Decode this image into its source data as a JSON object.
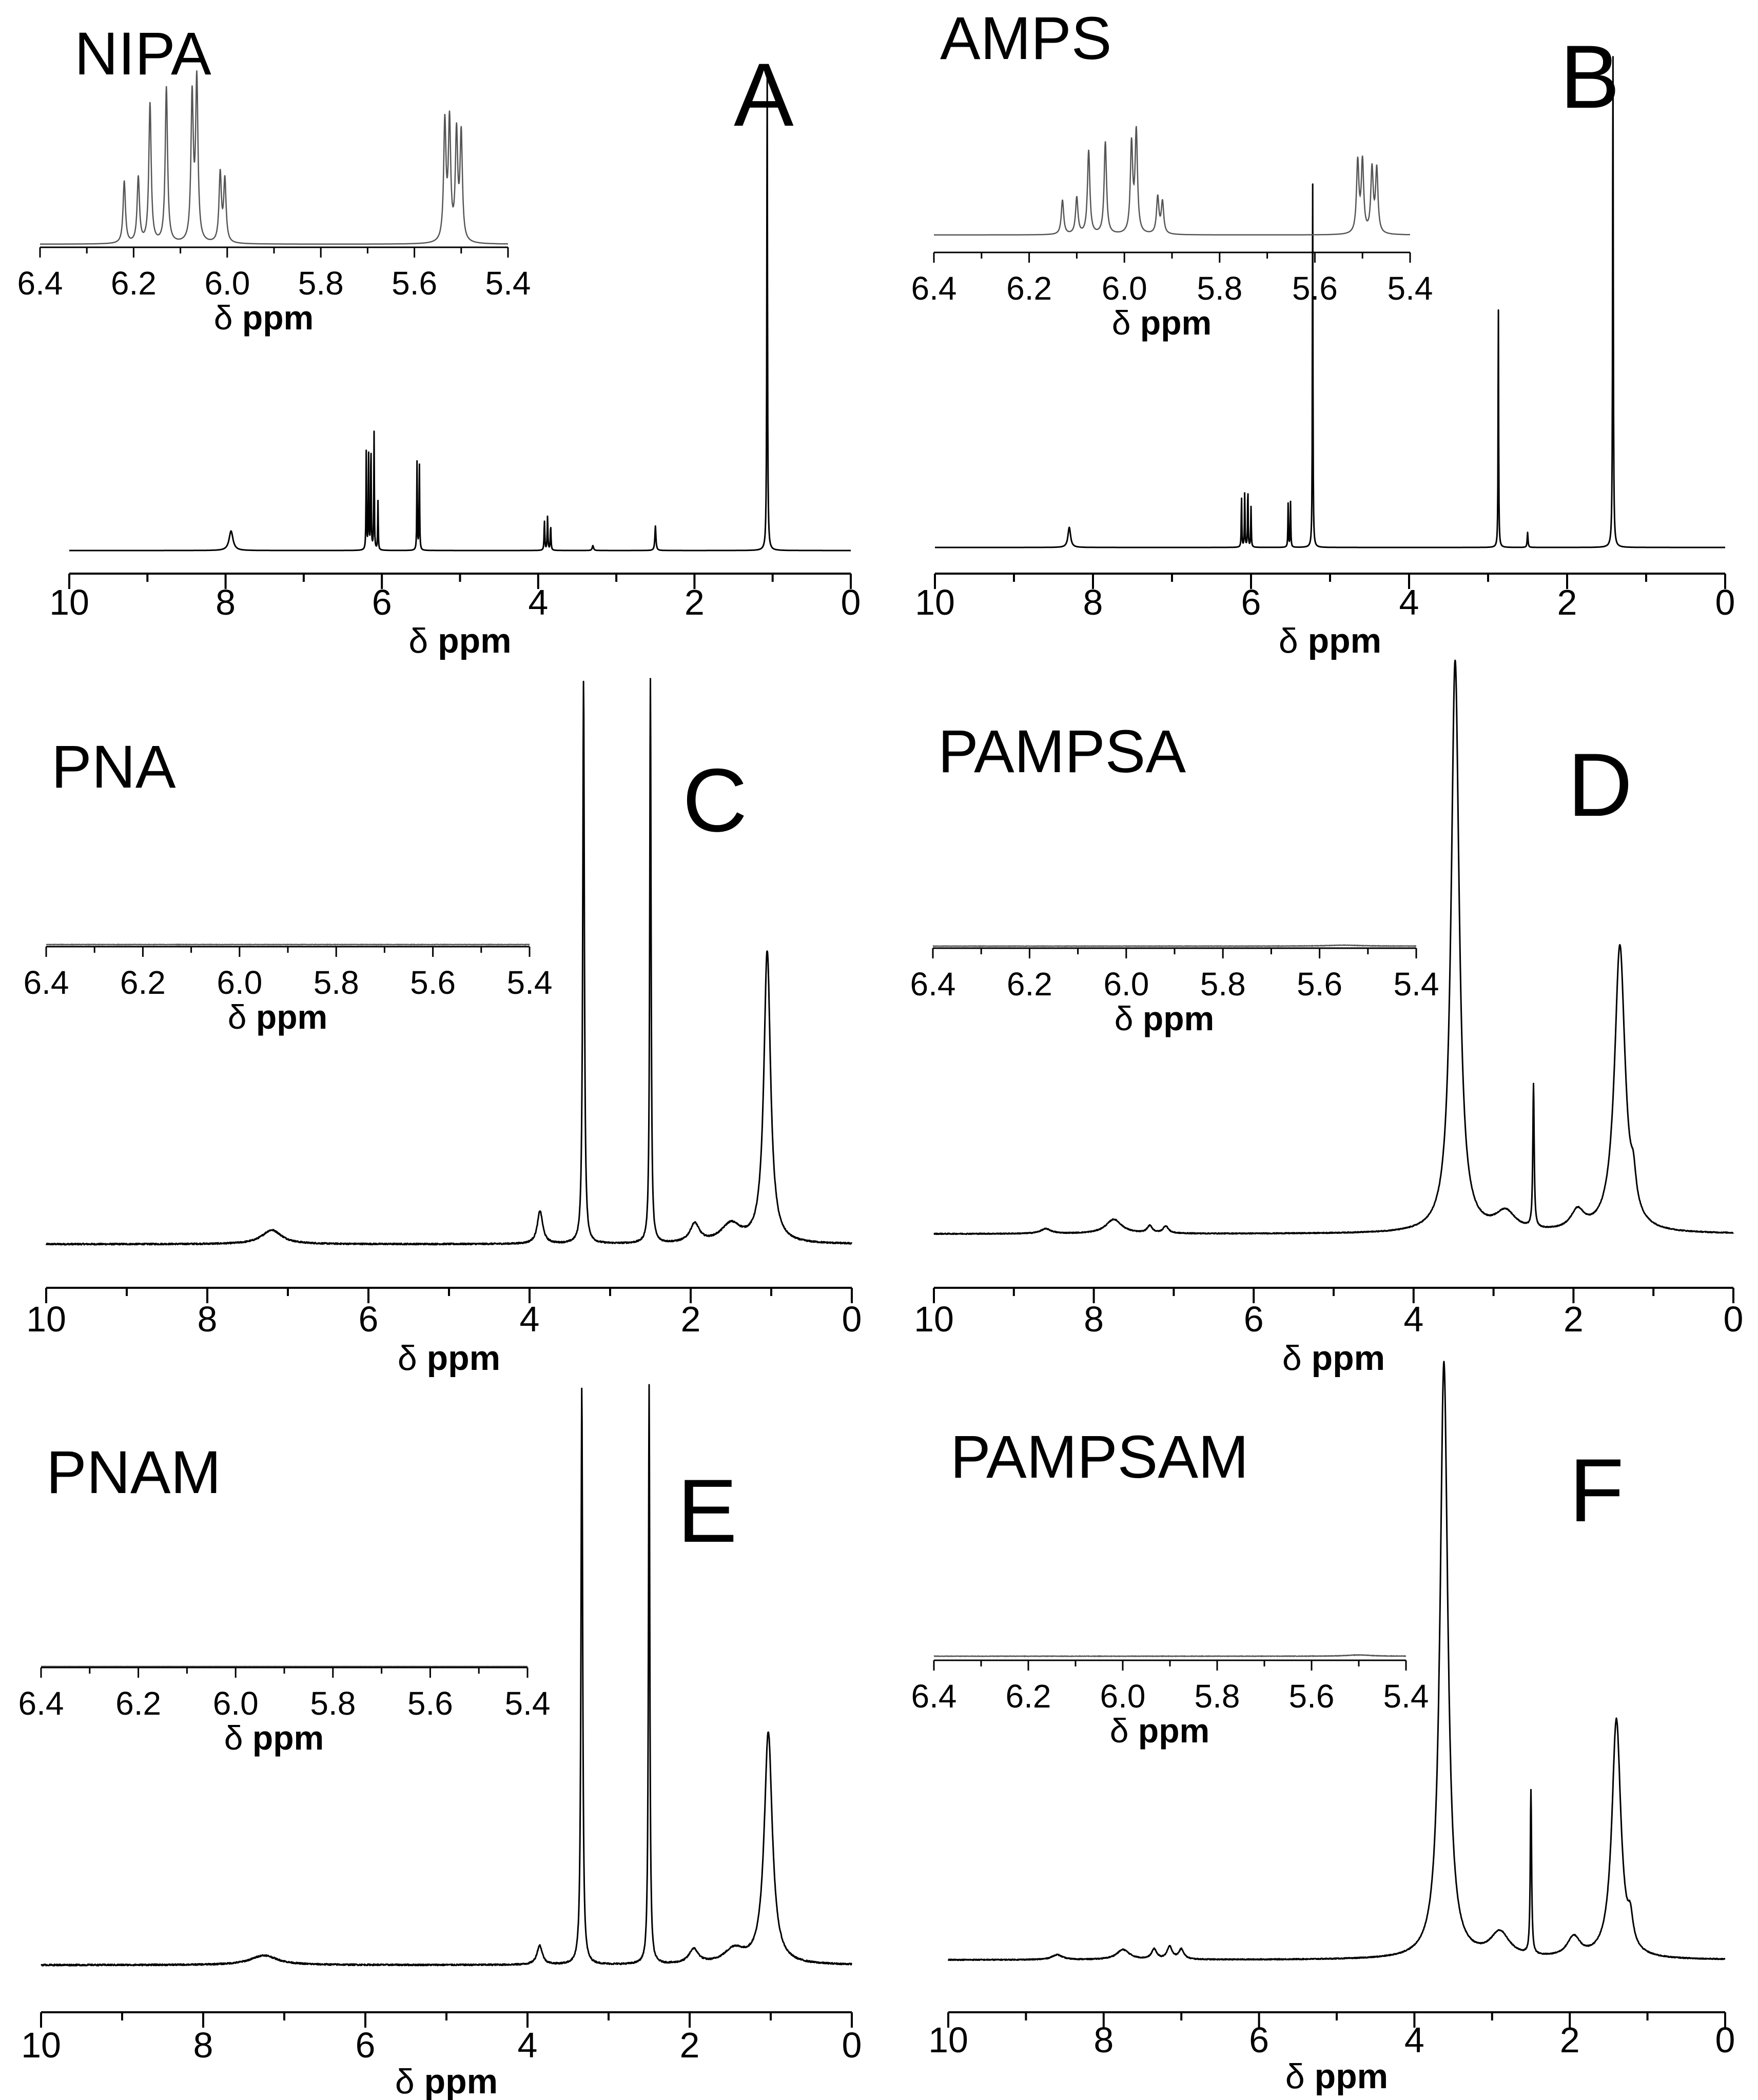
{
  "chart_data": [
    {
      "type": "line",
      "panel_label": "A",
      "compound": "NIPA",
      "xlabel_delta": "δ",
      "xlabel_unit": "ppm",
      "xlim": [
        10,
        0
      ],
      "xticks": [
        "10",
        "8",
        "6",
        "4",
        "2",
        "0"
      ],
      "xtick_values": [
        10,
        8,
        6,
        4,
        2,
        0
      ],
      "baseline_noise": 0,
      "peaks": [
        {
          "x": 7.93,
          "y": 0.04,
          "w": 0.03
        },
        {
          "x": 6.2,
          "y": 0.2,
          "w": 0.004
        },
        {
          "x": 6.17,
          "y": 0.2,
          "w": 0.004
        },
        {
          "x": 6.14,
          "y": 0.22,
          "w": 0.004
        },
        {
          "x": 6.1,
          "y": 0.24,
          "w": 0.004
        },
        {
          "x": 6.05,
          "y": 0.1,
          "w": 0.004
        },
        {
          "x": 5.55,
          "y": 0.18,
          "w": 0.004
        },
        {
          "x": 5.52,
          "y": 0.18,
          "w": 0.004
        },
        {
          "x": 3.92,
          "y": 0.06,
          "w": 0.005
        },
        {
          "x": 3.88,
          "y": 0.07,
          "w": 0.005
        },
        {
          "x": 3.84,
          "y": 0.05,
          "w": 0.005
        },
        {
          "x": 3.3,
          "y": 0.01,
          "w": 0.01
        },
        {
          "x": 2.5,
          "y": 0.05,
          "w": 0.008
        },
        {
          "x": 1.07,
          "y": 1.0,
          "w": 0.005
        }
      ],
      "inset": {
        "xlim": [
          6.4,
          5.4
        ],
        "xticks": [
          "6.4",
          "6.2",
          "6.0",
          "5.8",
          "5.6",
          "5.4"
        ],
        "xtick_values": [
          6.4,
          6.2,
          6.0,
          5.8,
          5.6,
          5.4
        ],
        "xlabel_delta": "δ",
        "xlabel_unit": "ppm",
        "noise": 0,
        "peaks": [
          {
            "x": 6.22,
            "y": 0.38,
            "w": 0.003
          },
          {
            "x": 6.19,
            "y": 0.4,
            "w": 0.003
          },
          {
            "x": 6.165,
            "y": 0.85,
            "w": 0.003
          },
          {
            "x": 6.13,
            "y": 0.95,
            "w": 0.003
          },
          {
            "x": 6.075,
            "y": 0.88,
            "w": 0.003
          },
          {
            "x": 6.065,
            "y": 0.98,
            "w": 0.003
          },
          {
            "x": 6.015,
            "y": 0.42,
            "w": 0.003
          },
          {
            "x": 6.005,
            "y": 0.38,
            "w": 0.003
          },
          {
            "x": 5.535,
            "y": 0.72,
            "w": 0.003
          },
          {
            "x": 5.525,
            "y": 0.72,
            "w": 0.003
          },
          {
            "x": 5.51,
            "y": 0.65,
            "w": 0.003
          },
          {
            "x": 5.5,
            "y": 0.65,
            "w": 0.003
          }
        ]
      }
    },
    {
      "type": "line",
      "panel_label": "B",
      "compound": "AMPS",
      "xlabel_delta": "δ",
      "xlabel_unit": "ppm",
      "xlim": [
        10,
        0
      ],
      "xticks": [
        "10",
        "8",
        "6",
        "4",
        "2",
        "0"
      ],
      "xtick_values": [
        10,
        8,
        6,
        4,
        2,
        0
      ],
      "baseline_noise": 0,
      "peaks": [
        {
          "x": 8.3,
          "y": 0.04,
          "w": 0.02
        },
        {
          "x": 6.12,
          "y": 0.1,
          "w": 0.004
        },
        {
          "x": 6.08,
          "y": 0.11,
          "w": 0.004
        },
        {
          "x": 6.04,
          "y": 0.12,
          "w": 0.004
        },
        {
          "x": 6.0,
          "y": 0.08,
          "w": 0.004
        },
        {
          "x": 5.53,
          "y": 0.09,
          "w": 0.004
        },
        {
          "x": 5.5,
          "y": 0.09,
          "w": 0.004
        },
        {
          "x": 5.22,
          "y": 0.75,
          "w": 0.004
        },
        {
          "x": 2.87,
          "y": 0.49,
          "w": 0.004
        },
        {
          "x": 2.5,
          "y": 0.03,
          "w": 0.006
        },
        {
          "x": 1.42,
          "y": 1.0,
          "w": 0.005
        }
      ],
      "inset": {
        "xlim": [
          6.4,
          5.4
        ],
        "xticks": [
          "6.4",
          "6.2",
          "6.0",
          "5.8",
          "5.6",
          "5.4"
        ],
        "xtick_values": [
          6.4,
          6.2,
          6.0,
          5.8,
          5.6,
          5.4
        ],
        "xlabel_delta": "δ",
        "xlabel_unit": "ppm",
        "noise": 0,
        "peaks": [
          {
            "x": 6.13,
            "y": 0.28,
            "w": 0.003
          },
          {
            "x": 6.1,
            "y": 0.3,
            "w": 0.003
          },
          {
            "x": 6.075,
            "y": 0.68,
            "w": 0.003
          },
          {
            "x": 6.04,
            "y": 0.75,
            "w": 0.003
          },
          {
            "x": 5.985,
            "y": 0.72,
            "w": 0.003
          },
          {
            "x": 5.975,
            "y": 0.82,
            "w": 0.003
          },
          {
            "x": 5.93,
            "y": 0.3,
            "w": 0.003
          },
          {
            "x": 5.92,
            "y": 0.26,
            "w": 0.003
          },
          {
            "x": 5.51,
            "y": 0.58,
            "w": 0.003
          },
          {
            "x": 5.5,
            "y": 0.58,
            "w": 0.003
          },
          {
            "x": 5.48,
            "y": 0.52,
            "w": 0.003
          },
          {
            "x": 5.47,
            "y": 0.52,
            "w": 0.003
          }
        ]
      }
    },
    {
      "type": "line",
      "panel_label": "C",
      "compound": "PNA",
      "xlabel_delta": "δ",
      "xlabel_unit": "ppm",
      "xlim": [
        10,
        0
      ],
      "xticks": [
        "10",
        "8",
        "6",
        "4",
        "2",
        "0"
      ],
      "xtick_values": [
        10,
        8,
        6,
        4,
        2,
        0
      ],
      "baseline_noise": 0.003,
      "peaks": [
        {
          "x": 7.2,
          "y": 0.03,
          "w": 0.15
        },
        {
          "x": 3.87,
          "y": 0.07,
          "w": 0.04
        },
        {
          "x": 3.33,
          "y": 1.2,
          "w": 0.012
        },
        {
          "x": 2.5,
          "y": 1.2,
          "w": 0.01
        },
        {
          "x": 1.95,
          "y": 0.04,
          "w": 0.07
        },
        {
          "x": 1.5,
          "y": 0.04,
          "w": 0.15
        },
        {
          "x": 1.05,
          "y": 0.62,
          "w": 0.05
        }
      ],
      "inset": {
        "xlim": [
          6.4,
          5.4
        ],
        "xticks": [
          "6.4",
          "6.2",
          "6.0",
          "5.8",
          "5.6",
          "5.4"
        ],
        "xtick_values": [
          6.4,
          6.2,
          6.0,
          5.8,
          5.6,
          5.4
        ],
        "xlabel_delta": "δ",
        "xlabel_unit": "ppm",
        "noise": 0.012,
        "peaks": []
      }
    },
    {
      "type": "line",
      "panel_label": "D",
      "compound": "PAMPSA",
      "xlabel_delta": "δ",
      "xlabel_unit": "ppm",
      "xlim": [
        10,
        0
      ],
      "xticks": [
        "10",
        "8",
        "6",
        "4",
        "2",
        "0"
      ],
      "xtick_values": [
        10,
        8,
        6,
        4,
        2,
        0
      ],
      "baseline_noise": 0.002,
      "peaks": [
        {
          "x": 8.6,
          "y": 0.01,
          "w": 0.08
        },
        {
          "x": 7.75,
          "y": 0.03,
          "w": 0.12
        },
        {
          "x": 7.3,
          "y": 0.015,
          "w": 0.04
        },
        {
          "x": 7.1,
          "y": 0.015,
          "w": 0.04
        },
        {
          "x": 3.48,
          "y": 1.2,
          "w": 0.06
        },
        {
          "x": 2.85,
          "y": 0.04,
          "w": 0.15
        },
        {
          "x": 2.5,
          "y": 0.3,
          "w": 0.01
        },
        {
          "x": 1.95,
          "y": 0.04,
          "w": 0.1
        },
        {
          "x": 1.42,
          "y": 0.6,
          "w": 0.08
        },
        {
          "x": 1.25,
          "y": 0.06,
          "w": 0.04
        }
      ],
      "inset": {
        "xlim": [
          6.4,
          5.4
        ],
        "xticks": [
          "6.4",
          "6.2",
          "6.0",
          "5.8",
          "5.6",
          "5.4"
        ],
        "xtick_values": [
          6.4,
          6.2,
          6.0,
          5.8,
          5.6,
          5.4
        ],
        "xlabel_delta": "δ",
        "xlabel_unit": "ppm",
        "noise": 0.012,
        "peaks": [
          {
            "x": 5.55,
            "y": 0.03,
            "w": 0.04
          }
        ]
      }
    },
    {
      "type": "line",
      "panel_label": "E",
      "compound": "PNAM",
      "xlabel_delta": "δ",
      "xlabel_unit": "ppm",
      "xlim": [
        10,
        0
      ],
      "xticks": [
        "10",
        "8",
        "6",
        "4",
        "2",
        "0"
      ],
      "xtick_values": [
        10,
        8,
        6,
        4,
        2,
        0
      ],
      "baseline_noise": 0.003,
      "peaks": [
        {
          "x": 7.25,
          "y": 0.02,
          "w": 0.2
        },
        {
          "x": 3.85,
          "y": 0.04,
          "w": 0.04
        },
        {
          "x": 3.33,
          "y": 1.2,
          "w": 0.012
        },
        {
          "x": 2.5,
          "y": 1.2,
          "w": 0.01
        },
        {
          "x": 1.95,
          "y": 0.03,
          "w": 0.07
        },
        {
          "x": 1.45,
          "y": 0.03,
          "w": 0.15
        },
        {
          "x": 1.03,
          "y": 0.48,
          "w": 0.06
        }
      ],
      "inset": {
        "xlim": [
          6.4,
          5.4
        ],
        "xticks": [
          "6.4",
          "6.2",
          "6.0",
          "5.8",
          "5.6",
          "5.4"
        ],
        "xtick_values": [
          6.4,
          6.2,
          6.0,
          5.8,
          5.6,
          5.4
        ],
        "xlabel_delta": "δ",
        "xlabel_unit": "ppm",
        "noise": 0.004,
        "peaks": []
      }
    },
    {
      "type": "line",
      "panel_label": "F",
      "compound": "PAMPSAM",
      "xlabel_delta": "δ",
      "xlabel_unit": "ppm",
      "xlim": [
        10,
        0
      ],
      "xticks": [
        "10",
        "8",
        "6",
        "4",
        "2",
        "0"
      ],
      "xtick_values": [
        10,
        8,
        6,
        4,
        2,
        0
      ],
      "baseline_noise": 0.002,
      "peaks": [
        {
          "x": 8.6,
          "y": 0.01,
          "w": 0.08
        },
        {
          "x": 7.75,
          "y": 0.02,
          "w": 0.1
        },
        {
          "x": 7.35,
          "y": 0.02,
          "w": 0.04
        },
        {
          "x": 7.15,
          "y": 0.025,
          "w": 0.04
        },
        {
          "x": 7.0,
          "y": 0.02,
          "w": 0.04
        },
        {
          "x": 3.62,
          "y": 1.2,
          "w": 0.06
        },
        {
          "x": 2.9,
          "y": 0.05,
          "w": 0.15
        },
        {
          "x": 2.5,
          "y": 0.33,
          "w": 0.01
        },
        {
          "x": 1.95,
          "y": 0.04,
          "w": 0.1
        },
        {
          "x": 1.4,
          "y": 0.48,
          "w": 0.07
        },
        {
          "x": 1.22,
          "y": 0.05,
          "w": 0.04
        }
      ],
      "inset": {
        "xlim": [
          6.4,
          5.4
        ],
        "xticks": [
          "6.4",
          "6.2",
          "6.0",
          "5.8",
          "5.6",
          "5.4"
        ],
        "xtick_values": [
          6.4,
          6.2,
          6.0,
          5.8,
          5.6,
          5.4
        ],
        "xlabel_delta": "δ",
        "xlabel_unit": "ppm",
        "noise": 0.012,
        "peaks": [
          {
            "x": 5.5,
            "y": 0.04,
            "w": 0.03
          }
        ]
      }
    }
  ]
}
